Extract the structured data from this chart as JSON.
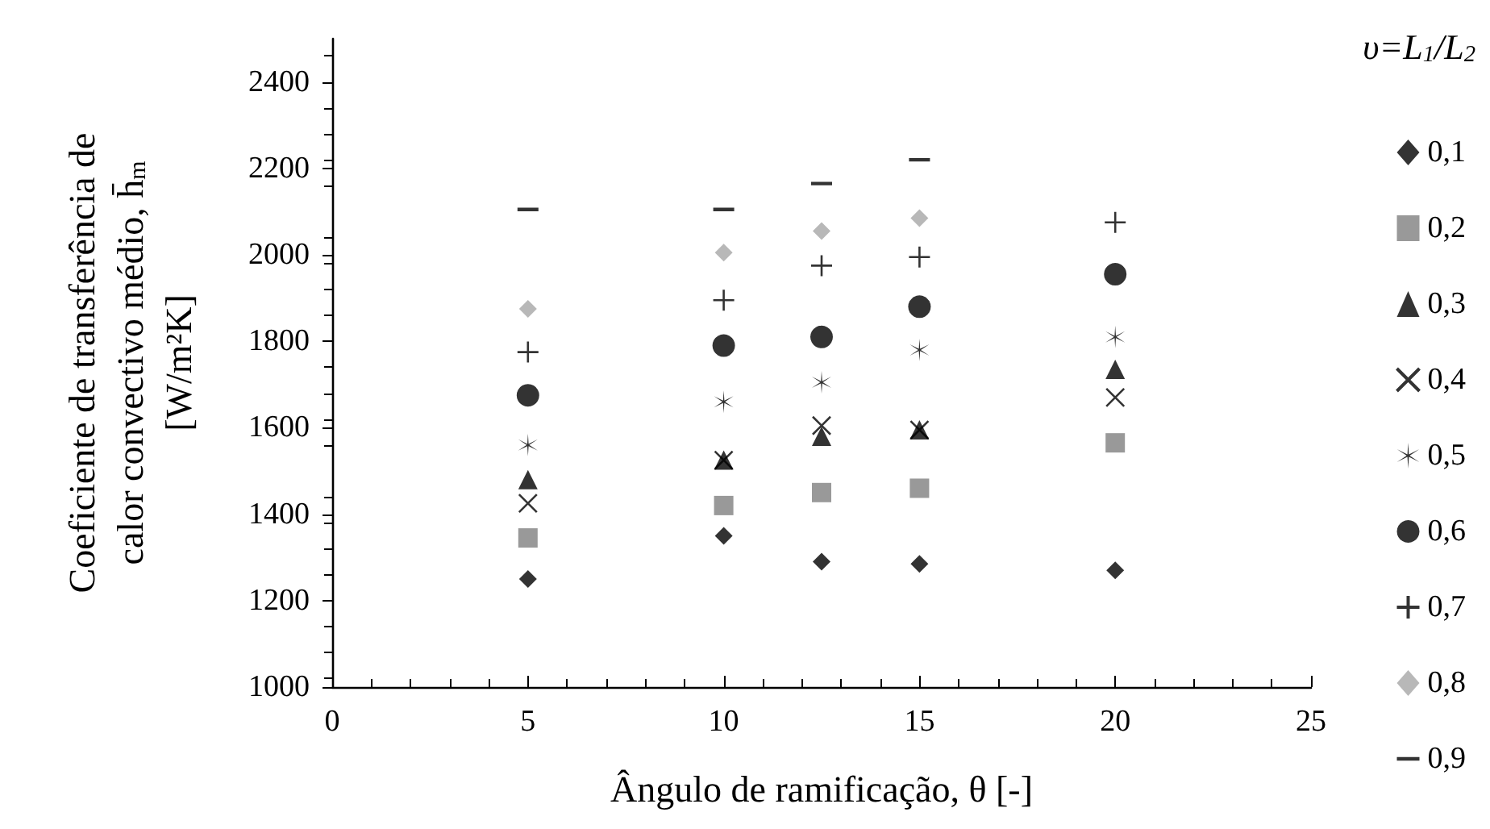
{
  "chart_data": {
    "type": "scatter",
    "xlabel": "Ângulo de ramificação, θ [-]",
    "ylabel": "Coeficiente de transferência de\ncalor convectivo médio, h̄$_{m}$\n[W/m²K]",
    "legend_title": "υ=L$_{1}$/L$_{2}$",
    "x": [
      5,
      10,
      12.5,
      15,
      20
    ],
    "series": [
      {
        "name": "0,1",
        "color": "#000000",
        "marker": "diamond",
        "values": [
          1250,
          1350,
          1290,
          1285,
          1270
        ]
      },
      {
        "name": "0,2",
        "color": "#808080",
        "marker": "square",
        "values": [
          1345,
          1420,
          1450,
          1460,
          1565
        ]
      },
      {
        "name": "0,3",
        "color": "#000000",
        "marker": "triangle",
        "values": [
          1480,
          1525,
          1580,
          1595,
          1735
        ]
      },
      {
        "name": "0,4",
        "color": "#000000",
        "marker": "cross",
        "values": [
          1425,
          1525,
          1605,
          1595,
          1670
        ]
      },
      {
        "name": "0,5",
        "color": "#000000",
        "values": [
          1560,
          1660,
          1705,
          1780,
          1810
        ]
      },
      {
        "name": "0,6",
        "color": "#000000",
        "marker": "circle",
        "values": [
          1675,
          1790,
          1810,
          1880,
          1955
        ]
      },
      {
        "name": "0,7",
        "color": "#000000",
        "marker": "plus",
        "values": [
          1775,
          1895,
          1975,
          1995,
          2075
        ]
      },
      {
        "name": "0,8",
        "color": "#a6a6a6",
        "marker": "diamond",
        "values": [
          1875,
          2005,
          2055,
          2085,
          null
        ]
      },
      {
        "name": "0,9",
        "color": "#000000",
        "values": [
          2105,
          2105,
          2165,
          2220,
          null
        ]
      }
    ],
    "xlim": [
      0,
      25
    ],
    "xticks": [
      0,
      5,
      10,
      15,
      20,
      25
    ],
    "ylim": [
      1000,
      2500
    ],
    "yticks": [
      1000,
      1200,
      1400,
      1600,
      1800,
      2000,
      2200,
      2400
    ],
    "grid": false,
    "legend": "right"
  }
}
